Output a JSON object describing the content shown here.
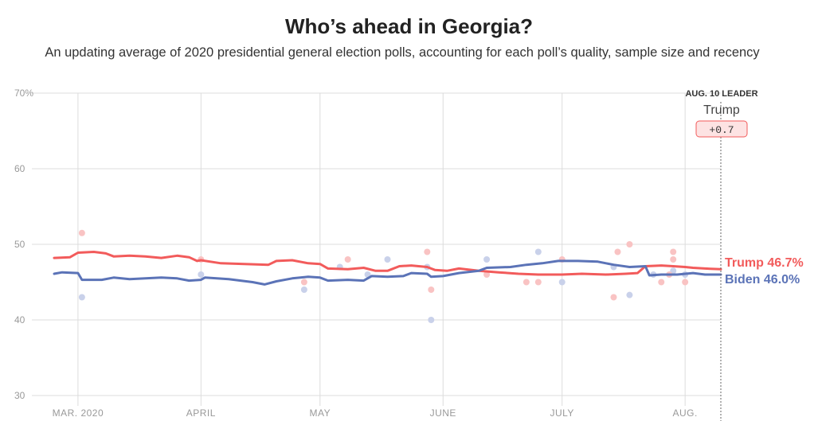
{
  "header": {
    "title": "Who’s ahead in Georgia?",
    "subtitle": "An updating average of 2020 presidential general election polls, accounting for each poll’s quality, sample size and recency"
  },
  "leader": {
    "heading": "AUG. 10 LEADER",
    "name": "Trump",
    "margin": "+0.7"
  },
  "end_labels": {
    "trump": "Trump 46.7%",
    "biden": "Biden 46.0%"
  },
  "colors": {
    "trump": "#f25b5b",
    "biden": "#5b73b7",
    "trump_dot": "#f9c3c3",
    "biden_dot": "#c9d1ea",
    "grid": "#dcdcdc"
  },
  "chart_data": {
    "type": "line",
    "title": "Who’s ahead in Georgia?",
    "subtitle": "An updating average of 2020 presidential general election polls, accounting for each poll’s quality, sample size and recency",
    "xlabel": "",
    "ylabel": "",
    "x_axis": {
      "type": "date",
      "range": [
        "2020-02-24",
        "2020-08-10"
      ],
      "tick_dates": [
        "2020-03-01",
        "2020-04-01",
        "2020-05-01",
        "2020-06-01",
        "2020-07-01",
        "2020-08-01"
      ],
      "tick_labels": [
        "MAR. 2020",
        "APRIL",
        "MAY",
        "JUNE",
        "JULY",
        "AUG."
      ]
    },
    "y_axis": {
      "range": [
        30,
        70
      ],
      "ticks": [
        30,
        40,
        50,
        60,
        70
      ],
      "tick_labels": [
        "30",
        "40",
        "50",
        "60",
        "70%"
      ]
    },
    "grid": true,
    "series": [
      {
        "name": "Trump",
        "points": [
          [
            "2020-02-24",
            48.2
          ],
          [
            "2020-02-28",
            48.3
          ],
          [
            "2020-03-01",
            48.9
          ],
          [
            "2020-03-05",
            49.0
          ],
          [
            "2020-03-08",
            48.8
          ],
          [
            "2020-03-10",
            48.4
          ],
          [
            "2020-03-14",
            48.5
          ],
          [
            "2020-03-18",
            48.4
          ],
          [
            "2020-03-22",
            48.2
          ],
          [
            "2020-03-26",
            48.5
          ],
          [
            "2020-03-29",
            48.3
          ],
          [
            "2020-03-31",
            47.8
          ],
          [
            "2020-04-01",
            47.9
          ],
          [
            "2020-04-06",
            47.5
          ],
          [
            "2020-04-12",
            47.4
          ],
          [
            "2020-04-18",
            47.3
          ],
          [
            "2020-04-20",
            47.8
          ],
          [
            "2020-04-24",
            47.9
          ],
          [
            "2020-04-28",
            47.5
          ],
          [
            "2020-05-01",
            47.4
          ],
          [
            "2020-05-03",
            46.8
          ],
          [
            "2020-05-08",
            46.7
          ],
          [
            "2020-05-12",
            46.9
          ],
          [
            "2020-05-15",
            46.5
          ],
          [
            "2020-05-18",
            46.5
          ],
          [
            "2020-05-21",
            47.1
          ],
          [
            "2020-05-24",
            47.2
          ],
          [
            "2020-05-28",
            47.0
          ],
          [
            "2020-05-30",
            46.6
          ],
          [
            "2020-06-02",
            46.5
          ],
          [
            "2020-06-05",
            46.8
          ],
          [
            "2020-06-10",
            46.5
          ],
          [
            "2020-06-15",
            46.3
          ],
          [
            "2020-06-20",
            46.1
          ],
          [
            "2020-06-25",
            46.0
          ],
          [
            "2020-07-01",
            46.0
          ],
          [
            "2020-07-06",
            46.1
          ],
          [
            "2020-07-12",
            46.0
          ],
          [
            "2020-07-17",
            46.1
          ],
          [
            "2020-07-20",
            46.2
          ],
          [
            "2020-07-22",
            47.1
          ],
          [
            "2020-07-26",
            47.2
          ],
          [
            "2020-07-29",
            47.1
          ],
          [
            "2020-08-01",
            47.0
          ],
          [
            "2020-08-03",
            46.9
          ],
          [
            "2020-08-06",
            46.8
          ],
          [
            "2020-08-10",
            46.7
          ]
        ]
      },
      {
        "name": "Biden",
        "points": [
          [
            "2020-02-24",
            46.1
          ],
          [
            "2020-02-26",
            46.3
          ],
          [
            "2020-03-01",
            46.2
          ],
          [
            "2020-03-02",
            45.3
          ],
          [
            "2020-03-07",
            45.3
          ],
          [
            "2020-03-10",
            45.6
          ],
          [
            "2020-03-14",
            45.4
          ],
          [
            "2020-03-18",
            45.5
          ],
          [
            "2020-03-22",
            45.6
          ],
          [
            "2020-03-26",
            45.5
          ],
          [
            "2020-03-29",
            45.2
          ],
          [
            "2020-04-01",
            45.3
          ],
          [
            "2020-04-02",
            45.6
          ],
          [
            "2020-04-08",
            45.4
          ],
          [
            "2020-04-14",
            45.0
          ],
          [
            "2020-04-17",
            44.7
          ],
          [
            "2020-04-20",
            45.1
          ],
          [
            "2020-04-24",
            45.5
          ],
          [
            "2020-04-28",
            45.7
          ],
          [
            "2020-05-01",
            45.6
          ],
          [
            "2020-05-03",
            45.2
          ],
          [
            "2020-05-08",
            45.3
          ],
          [
            "2020-05-12",
            45.2
          ],
          [
            "2020-05-14",
            45.8
          ],
          [
            "2020-05-18",
            45.7
          ],
          [
            "2020-05-22",
            45.8
          ],
          [
            "2020-05-24",
            46.2
          ],
          [
            "2020-05-28",
            46.1
          ],
          [
            "2020-05-29",
            45.7
          ],
          [
            "2020-06-01",
            45.8
          ],
          [
            "2020-06-05",
            46.2
          ],
          [
            "2020-06-10",
            46.5
          ],
          [
            "2020-06-12",
            46.9
          ],
          [
            "2020-06-18",
            47.0
          ],
          [
            "2020-06-22",
            47.3
          ],
          [
            "2020-06-26",
            47.5
          ],
          [
            "2020-06-30",
            47.8
          ],
          [
            "2020-07-05",
            47.8
          ],
          [
            "2020-07-10",
            47.7
          ],
          [
            "2020-07-14",
            47.3
          ],
          [
            "2020-07-18",
            47.0
          ],
          [
            "2020-07-22",
            47.1
          ],
          [
            "2020-07-23",
            45.9
          ],
          [
            "2020-07-26",
            46.0
          ],
          [
            "2020-07-30",
            46.0
          ],
          [
            "2020-08-03",
            46.2
          ],
          [
            "2020-08-06",
            46.0
          ],
          [
            "2020-08-10",
            46.0
          ]
        ]
      }
    ],
    "poll_dots": {
      "trump": [
        [
          "2020-03-02",
          51.5
        ],
        [
          "2020-04-01",
          48.0
        ],
        [
          "2020-04-27",
          45.0
        ],
        [
          "2020-05-08",
          48.0
        ],
        [
          "2020-05-28",
          49.0
        ],
        [
          "2020-05-29",
          44.0
        ],
        [
          "2020-06-12",
          46.0
        ],
        [
          "2020-06-22",
          45.0
        ],
        [
          "2020-06-25",
          45.0
        ],
        [
          "2020-07-01",
          48.0
        ],
        [
          "2020-07-14",
          43.0
        ],
        [
          "2020-07-15",
          49.0
        ],
        [
          "2020-07-18",
          50.0
        ],
        [
          "2020-07-26",
          45.0
        ],
        [
          "2020-07-28",
          46.0
        ],
        [
          "2020-07-29",
          48.0
        ],
        [
          "2020-07-29",
          49.0
        ],
        [
          "2020-08-01",
          45.0
        ]
      ],
      "biden": [
        [
          "2020-03-02",
          43.0
        ],
        [
          "2020-04-01",
          46.0
        ],
        [
          "2020-04-27",
          44.0
        ],
        [
          "2020-05-06",
          47.0
        ],
        [
          "2020-05-13",
          46.0
        ],
        [
          "2020-05-18",
          48.0
        ],
        [
          "2020-05-28",
          47.0
        ],
        [
          "2020-05-29",
          40.0
        ],
        [
          "2020-06-12",
          48.0
        ],
        [
          "2020-06-25",
          49.0
        ],
        [
          "2020-07-01",
          45.0
        ],
        [
          "2020-07-14",
          47.0
        ],
        [
          "2020-07-18",
          43.3
        ],
        [
          "2020-07-24",
          46.0
        ],
        [
          "2020-07-29",
          46.5
        ],
        [
          "2020-08-01",
          46.0
        ]
      ]
    }
  }
}
